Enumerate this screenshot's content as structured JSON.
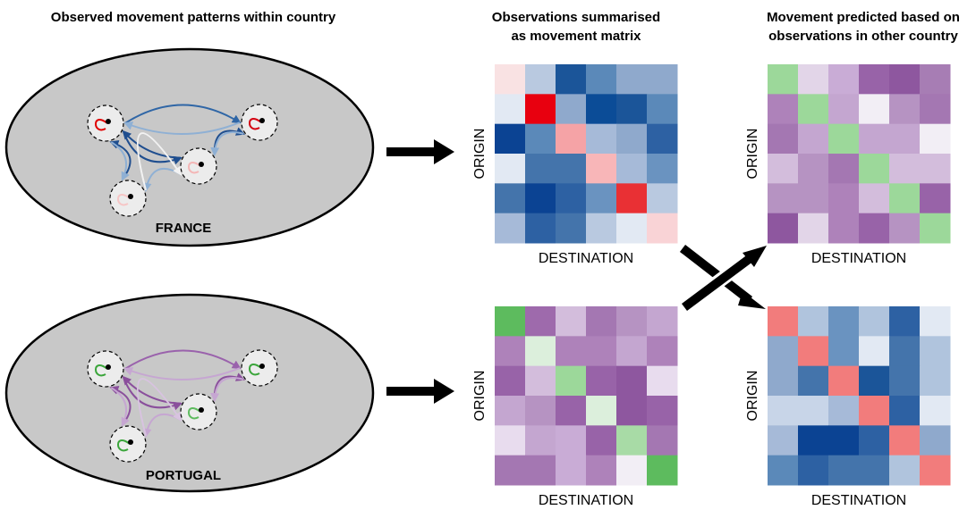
{
  "headers": {
    "observed": "Observed movement patterns within country",
    "summarised": [
      "Observations summarised",
      "as movement matrix"
    ],
    "predicted": [
      "Movement predicted based on",
      "observations in other country"
    ]
  },
  "countries": [
    {
      "label": "FRANCE"
    },
    {
      "label": "PORTUGAL"
    }
  ],
  "matrices": [
    {
      "y_label": "ORIGIN",
      "x_label": "DESTINATION"
    },
    {
      "y_label": "ORIGIN",
      "x_label": "DESTINATION"
    },
    {
      "y_label": "ORIGIN",
      "x_label": "DESTINATION"
    },
    {
      "y_label": "ORIGIN",
      "x_label": "DESTINATION"
    }
  ]
}
